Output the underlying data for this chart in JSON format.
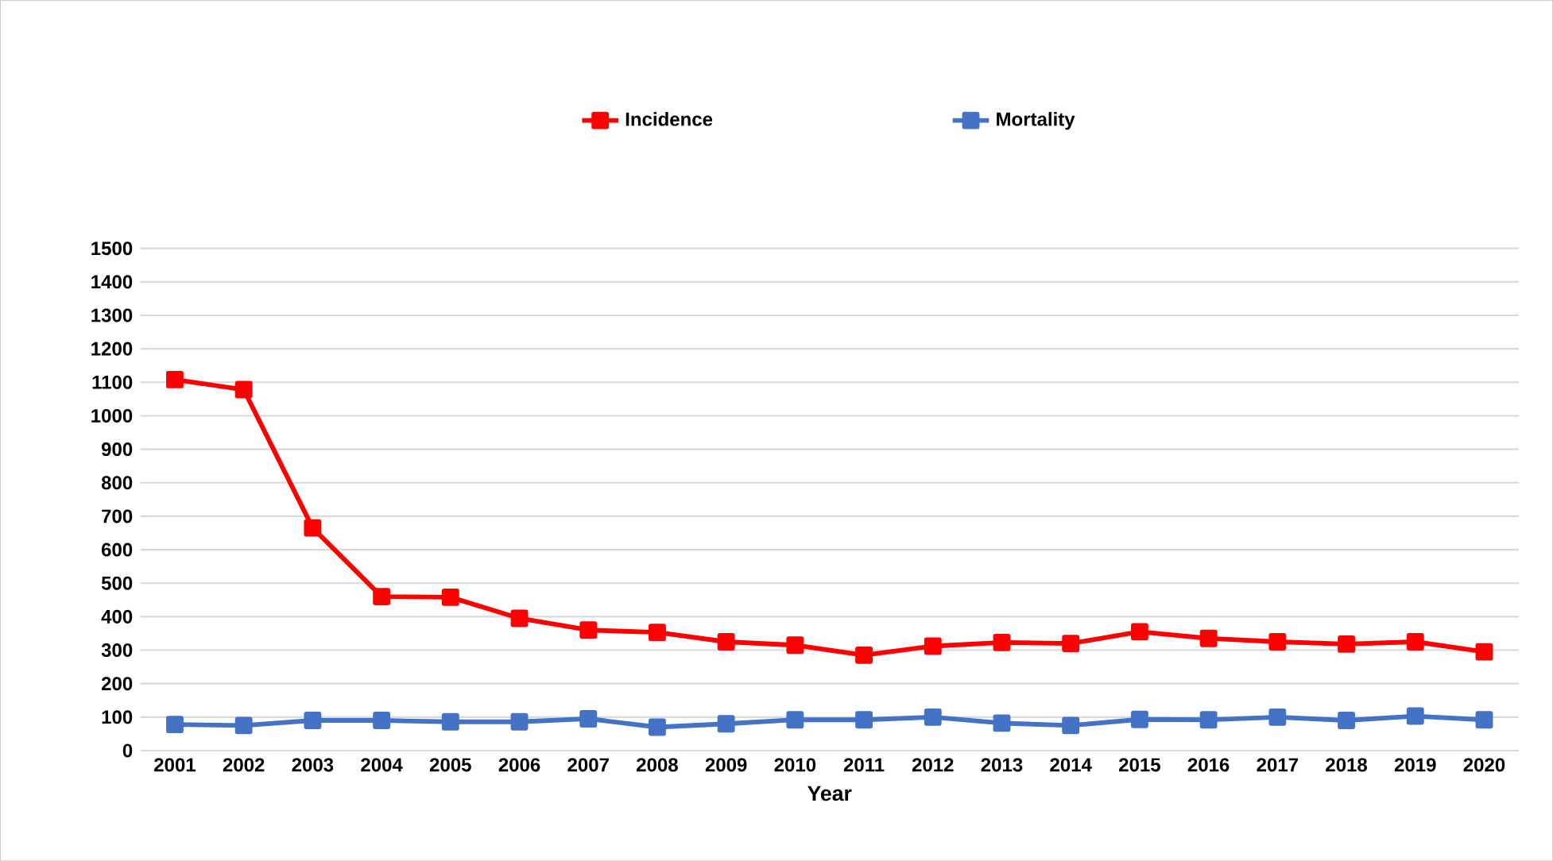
{
  "chart_data": {
    "type": "line",
    "xlabel": "Year",
    "categories": [
      "2001",
      "2002",
      "2003",
      "2004",
      "2005",
      "2006",
      "2007",
      "2008",
      "2009",
      "2010",
      "2011",
      "2012",
      "2013",
      "2014",
      "2015",
      "2016",
      "2017",
      "2018",
      "2019",
      "2020"
    ],
    "series": [
      {
        "name": "Incidence",
        "color": "#ff0000",
        "values": [
          1108,
          1078,
          665,
          460,
          458,
          395,
          360,
          353,
          325,
          315,
          285,
          312,
          323,
          320,
          355,
          335,
          325,
          318,
          325,
          295
        ]
      },
      {
        "name": "Mortality",
        "color": "#4472c4",
        "values": [
          78,
          75,
          90,
          90,
          86,
          86,
          95,
          70,
          80,
          92,
          92,
          100,
          82,
          75,
          93,
          92,
          100,
          90,
          103,
          92
        ]
      }
    ],
    "ylim": [
      0,
      1500
    ],
    "yticks": [
      0,
      100,
      200,
      300,
      400,
      500,
      600,
      700,
      800,
      900,
      1000,
      1100,
      1200,
      1300,
      1400,
      1500
    ],
    "grid": "y",
    "legend": "top",
    "marker": "square",
    "line_style": "solid"
  }
}
